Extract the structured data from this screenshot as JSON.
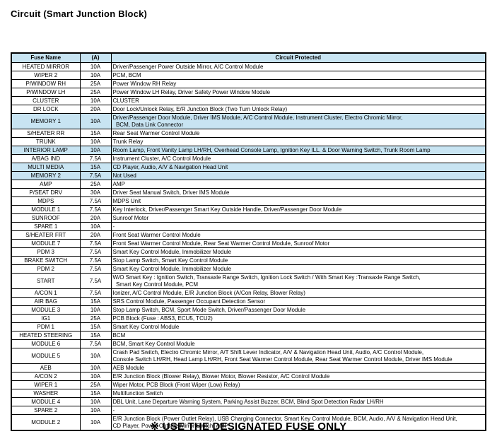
{
  "page": {
    "title": "Circuit (Smart Junction Block)",
    "footer": "※ USE THE DESIGNATED FUSE ONLY"
  },
  "colors": {
    "highlight": "#c8e4f2",
    "border": "#000000",
    "text": "#000000"
  },
  "table": {
    "headers": [
      "Fuse Name",
      "(A)",
      "Circuit Protected"
    ],
    "rows": [
      {
        "name": "HEATED MIRROR",
        "amp": "10A",
        "circuit": "Driver/Passenger Power Outside Mirror, A/C Control Module",
        "highlight": false
      },
      {
        "name": "WIPER 2",
        "amp": "10A",
        "circuit": "PCM, BCM",
        "highlight": false
      },
      {
        "name": "P/WINDOW RH",
        "amp": "25A",
        "circuit": "Power Window RH Relay",
        "highlight": false
      },
      {
        "name": "P/WINDOW LH",
        "amp": "25A",
        "circuit": "Power Window LH Relay, Driver Safety Power Window Module",
        "highlight": false
      },
      {
        "name": "CLUSTER",
        "amp": "10A",
        "circuit": "CLUSTER",
        "highlight": false
      },
      {
        "name": "DR LOCK",
        "amp": "20A",
        "circuit": "Door Lock/Unlock Relay, E/R Junction Block (Two Turn Unlock Relay)",
        "highlight": false
      },
      {
        "name": "MEMORY 1",
        "amp": "10A",
        "circuit": "Driver/Passenger Door Module, Driver IMS Module, A/C Control Module, Instrument Cluster, Electro Chromic Mirror,\n  BCM, Data Link Connector",
        "highlight": true
      },
      {
        "name": "S/HEATER RR",
        "amp": "15A",
        "circuit": "Rear Seat Warmer Control Module",
        "highlight": false
      },
      {
        "name": "TRUNK",
        "amp": "10A",
        "circuit": "Trunk Relay",
        "highlight": false
      },
      {
        "name": "INTERIOR LAMP",
        "amp": "10A",
        "circuit": "Room Lamp, Front Vanity Lamp LH/RH, Overhead Console Lamp, Ignition Key ILL. & Door Warning Switch, Trunk Room Lamp",
        "highlight": true
      },
      {
        "name": "A/BAG IND",
        "amp": "7.5A",
        "circuit": "Instrument Cluster, A/C Control Module",
        "highlight": false
      },
      {
        "name": "MULTI MEDIA",
        "amp": "15A",
        "circuit": "CD Player, Audio, A/V & Navigation Head Unit",
        "highlight": true
      },
      {
        "name": "MEMORY 2",
        "amp": "7.5A",
        "circuit": "Not Used",
        "highlight": true
      },
      {
        "name": "AMP",
        "amp": "25A",
        "circuit": "AMP",
        "highlight": false
      },
      {
        "name": "P/SEAT DRV",
        "amp": "30A",
        "circuit": "Driver Seat Manual Switch, Driver IMS Module",
        "highlight": false
      },
      {
        "name": "MDPS",
        "amp": "7.5A",
        "circuit": "MDPS Unit",
        "highlight": false
      },
      {
        "name": "MODULE 1",
        "amp": "7.5A",
        "circuit": "Key Interlock, Driver/Passenger Smart Key Outside Handle, Driver/Passenger Door Module",
        "highlight": false
      },
      {
        "name": "SUNROOF",
        "amp": "20A",
        "circuit": "Sunroof Motor",
        "highlight": false
      },
      {
        "name": "SPARE 1",
        "amp": "10A",
        "circuit": "-",
        "highlight": false
      },
      {
        "name": "S/HEATER FRT",
        "amp": "20A",
        "circuit": "Front Seat Warmer Control Module",
        "highlight": false
      },
      {
        "name": "MODULE 7",
        "amp": "7.5A",
        "circuit": "Front Seat Warmer Control Module, Rear Seat Warmer Control Module, Sunroof Motor",
        "highlight": false
      },
      {
        "name": "PDM 3",
        "amp": "7.5A",
        "circuit": "Smart Key Control Module, Immobilizer Module",
        "highlight": false
      },
      {
        "name": "BRAKE SWITCH",
        "amp": "7.5A",
        "circuit": "Stop Lamp Switch, Smart Key Control Module",
        "highlight": false
      },
      {
        "name": "PDM 2",
        "amp": "7.5A",
        "circuit": "Smart Key Control Module, Immobilizer Module",
        "highlight": false
      },
      {
        "name": "START",
        "amp": "7.5A",
        "circuit": "W/O Smart Key : Ignition Switch, Transaxle Range Switch, Ignition Lock Switch / With Smart Key :Transaxle Range Switch,\n  Smart Key Control Module, PCM",
        "highlight": false
      },
      {
        "name": "A/CON 1",
        "amp": "7.5A",
        "circuit": "Ionizer, A/C Control Module, E/R Junction Block (A/Con Relay, Blower Relay)",
        "highlight": false
      },
      {
        "name": "AIR BAG",
        "amp": "15A",
        "circuit": "SRS Control Module, Passenger Occupant Detection Sensor",
        "highlight": false
      },
      {
        "name": "MODULE 3",
        "amp": "10A",
        "circuit": "Stop Lamp Switch, BCM, Sport Mode Switch, Driver/Passenger Door Module",
        "highlight": false
      },
      {
        "name": "IG1",
        "amp": "25A",
        "circuit": "PCB Block (Fuse : ABS3, ECU5, TCU2)",
        "highlight": false
      },
      {
        "name": "PDM 1",
        "amp": "15A",
        "circuit": "Smart Key Control Module",
        "highlight": false
      },
      {
        "name": "HEATED STEERING",
        "amp": "15A",
        "circuit": "BCM",
        "highlight": false
      },
      {
        "name": "MODULE 6",
        "amp": "7.5A",
        "circuit": "BCM, Smart Key Control Module",
        "highlight": false
      },
      {
        "name": "MODULE 5",
        "amp": "10A",
        "circuit": "Crash Pad Switch, Electro Chromic Mirror, A/T Shift Lever Indicator, A/V & Navigation Head Unit, Audio, A/C Control Module,\nConsole Switch LH/RH, Head Lamp LH/RH, Front Seat Warmer Control Module, Rear Seat Warmer Control Module, Driver IMS Module",
        "highlight": false
      },
      {
        "name": "AEB",
        "amp": "10A",
        "circuit": "AEB Module",
        "highlight": false
      },
      {
        "name": "A/CON 2",
        "amp": "10A",
        "circuit": "E/R Junction Block (Blower Relay), Blower Motor, Blower Resistor, A/C Control Module",
        "highlight": false
      },
      {
        "name": "WIPER 1",
        "amp": "25A",
        "circuit": "Wiper Motor, PCB Block (Front Wiper (Low) Relay)",
        "highlight": false
      },
      {
        "name": "WASHER",
        "amp": "15A",
        "circuit": "Multifunction Switch",
        "highlight": false
      },
      {
        "name": "MODULE 4",
        "amp": "10A",
        "circuit": "DBL Unit, Lane Departure Warning System, Parking Assist Buzzer, BCM, Blind Spot Detection Radar LH/RH",
        "highlight": false
      },
      {
        "name": "SPARE 2",
        "amp": "10A",
        "circuit": "-",
        "highlight": false
      },
      {
        "name": "MODULE 2",
        "amp": "10A",
        "circuit": "E/R Junction Block (Power Outlet Relay), USB Charging Connector, Smart Key Control Module, BCM, Audio, A/V & Navigation Head Unit,\nCD Player, Power Outside Mirror Switch, AMP",
        "highlight": false
      }
    ]
  }
}
